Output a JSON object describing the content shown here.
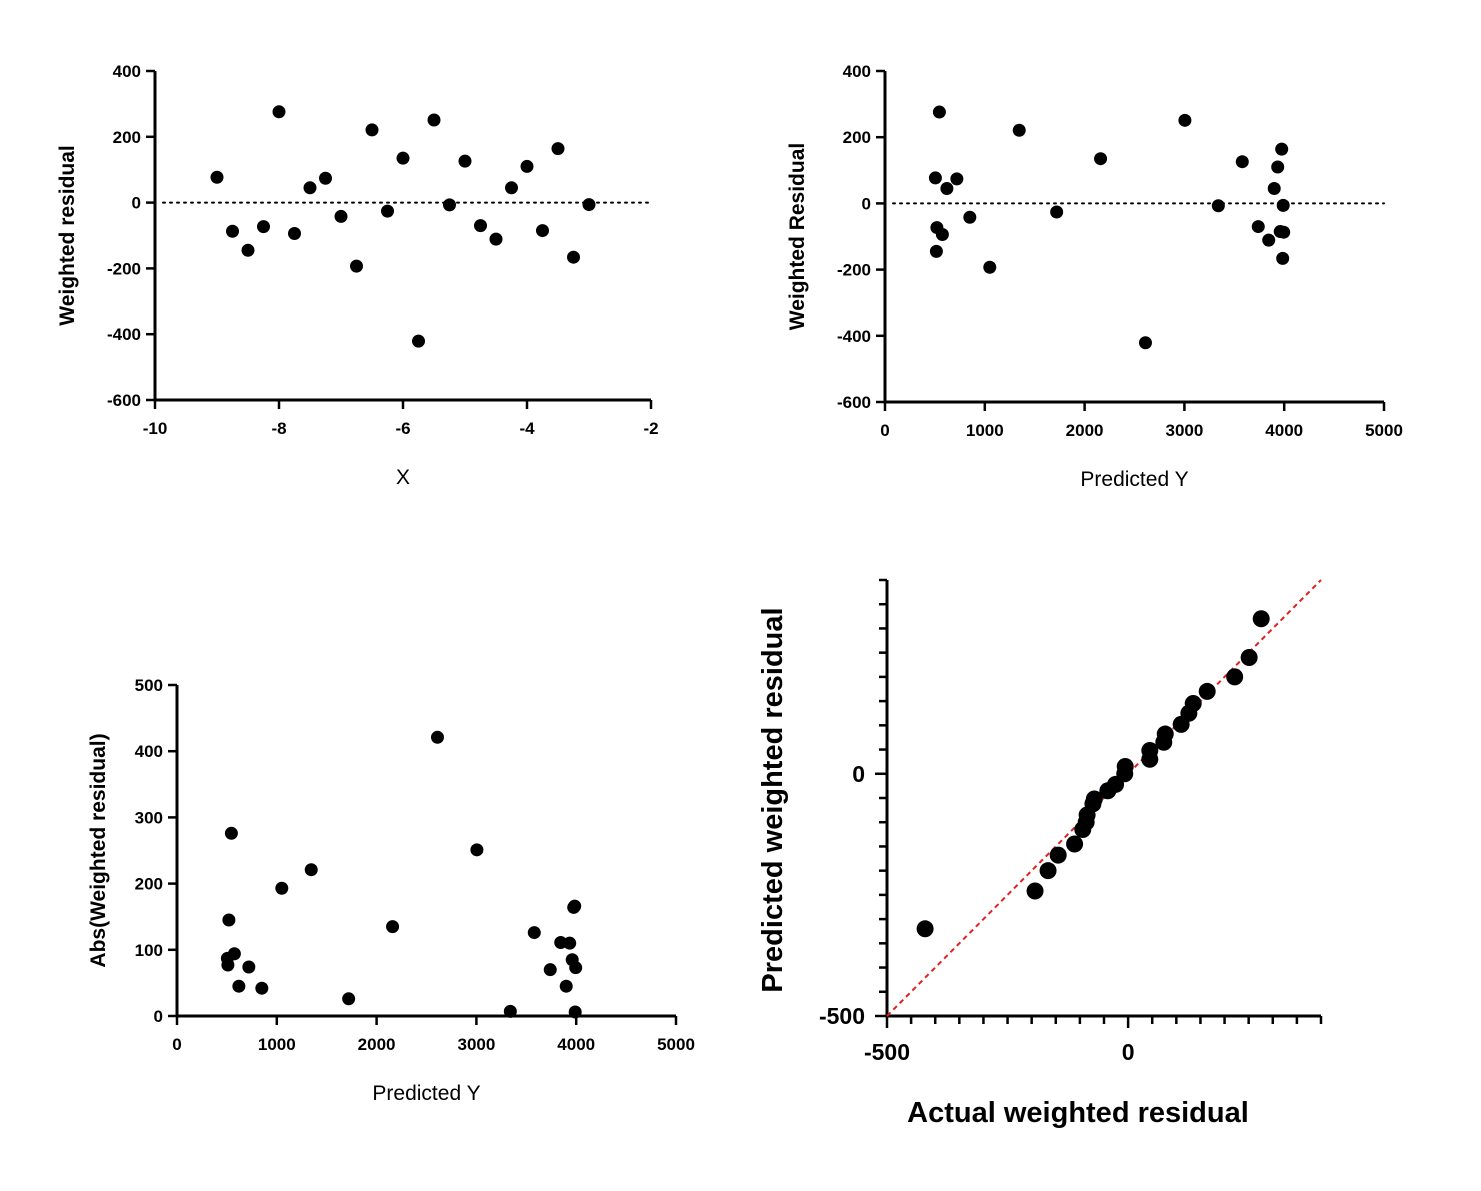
{
  "chart_data": [
    {
      "id": "residual-vs-x",
      "type": "scatter",
      "xlabel": "X",
      "ylabel": "Weighted residual",
      "xlim": [
        -10,
        -2
      ],
      "ylim": [
        -600,
        400
      ],
      "xticks": [
        -10,
        -8,
        -6,
        -4,
        -2
      ],
      "yticks": [
        -600,
        -400,
        -200,
        0,
        200,
        400
      ],
      "reference_line": {
        "y": 0,
        "style": "dotted"
      },
      "x": [
        -9.0,
        -8.75,
        -8.5,
        -8.25,
        -8.0,
        -7.75,
        -7.5,
        -7.25,
        -7.0,
        -6.75,
        -6.5,
        -6.25,
        -6.0,
        -5.75,
        -5.5,
        -5.25,
        -5.0,
        -4.75,
        -4.5,
        -4.25,
        -4.0,
        -3.75,
        -3.5,
        -3.25,
        -3.0
      ],
      "y": [
        77,
        -87,
        -145,
        -73,
        276,
        -94,
        45,
        74,
        -42,
        -193,
        221,
        -26,
        135,
        -421,
        251,
        -7,
        126,
        -70,
        -111,
        45,
        110,
        -85,
        164,
        -166,
        -6
      ]
    },
    {
      "id": "residual-vs-predicted",
      "type": "scatter",
      "xlabel": "Predicted Y",
      "ylabel": "Weighted Residual",
      "xlim": [
        0,
        5000
      ],
      "ylim": [
        -600,
        400
      ],
      "xticks": [
        0,
        1000,
        2000,
        3000,
        4000,
        5000
      ],
      "yticks": [
        -600,
        -400,
        -200,
        0,
        200,
        400
      ],
      "reference_line": {
        "y": 0,
        "style": "dotted"
      },
      "x": [
        505,
        515,
        520,
        545,
        575,
        620,
        720,
        850,
        1050,
        1345,
        1720,
        2160,
        2610,
        3005,
        3340,
        3580,
        3740,
        3845,
        3900,
        3935,
        3960,
        3975,
        3985,
        3990,
        3995
      ],
      "y": [
        77,
        -145,
        -73,
        276,
        -94,
        45,
        74,
        -42,
        -193,
        221,
        -26,
        135,
        -421,
        251,
        -7,
        126,
        -70,
        -111,
        45,
        110,
        -85,
        164,
        -166,
        -6,
        -87
      ]
    },
    {
      "id": "abs-residual-vs-predicted",
      "type": "scatter",
      "xlabel": "Predicted Y",
      "ylabel": "Abs(Weighted residual)",
      "xlim": [
        0,
        5000
      ],
      "ylim": [
        0,
        500
      ],
      "xticks": [
        0,
        1000,
        2000,
        3000,
        4000,
        5000
      ],
      "yticks": [
        0,
        100,
        200,
        300,
        400,
        500
      ],
      "x": [
        505,
        510,
        520,
        545,
        575,
        620,
        720,
        850,
        1050,
        1345,
        1720,
        2160,
        2610,
        3005,
        3340,
        3580,
        3740,
        3845,
        3900,
        3935,
        3960,
        3975,
        3985,
        3990,
        3995
      ],
      "y": [
        87,
        77,
        145,
        276,
        94,
        45,
        74,
        42,
        193,
        221,
        26,
        135,
        421,
        251,
        7,
        126,
        70,
        111,
        45,
        110,
        85,
        164,
        166,
        6,
        73
      ]
    },
    {
      "id": "qq-plot",
      "type": "scatter",
      "xlabel": "Actual weighted residual",
      "ylabel": "Predicted weighted residual",
      "xlim": [
        -500,
        400
      ],
      "ylim": [
        -500,
        400
      ],
      "xticks_labeled": [
        -500,
        0
      ],
      "yticks_labeled": [
        -500,
        0
      ],
      "reference_line": {
        "type": "identity",
        "color": "#e02020",
        "style": "dashed"
      },
      "x": [
        -421,
        -193,
        -166,
        -145,
        -111,
        -94,
        -87,
        -85,
        -73,
        -70,
        -42,
        -26,
        -7,
        -6,
        45,
        45,
        74,
        77,
        110,
        126,
        135,
        164,
        221,
        251,
        276
      ],
      "y": [
        -320,
        -242,
        -200,
        -168,
        -145,
        -115,
        -100,
        -85,
        -62,
        -52,
        -35,
        -22,
        0,
        15,
        30,
        48,
        65,
        82,
        102,
        125,
        145,
        170,
        200,
        240,
        320
      ]
    }
  ]
}
